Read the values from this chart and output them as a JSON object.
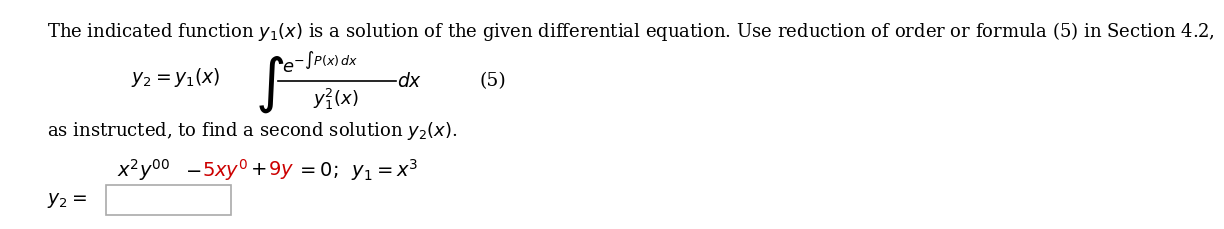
{
  "bg_color": "#ffffff",
  "text_color": "#000000",
  "red_color": "#cc0000",
  "line1": "The indicated function $y_1(x)$ is a solution of the given differential equation. Use reduction of order or formula (5) in Section 4.2,",
  "formula_label": "(5)",
  "line_as": "as instructed, to find a second solution $y_2(x)$.",
  "font_size_main": 13.0,
  "font_size_formula": 13.5,
  "font_size_ode": 14.0
}
